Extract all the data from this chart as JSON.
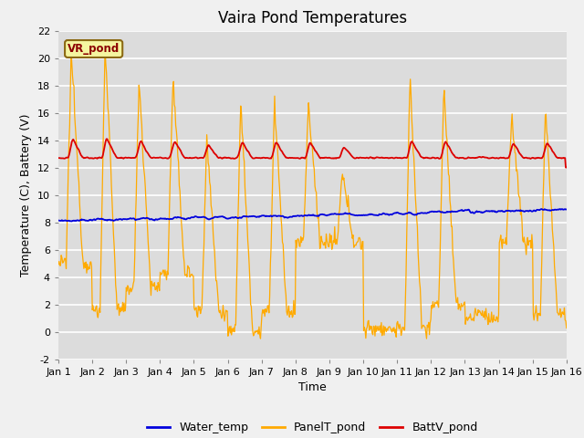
{
  "title": "Vaira Pond Temperatures",
  "xlabel": "Time",
  "ylabel": "Temperature (C), Battery (V)",
  "ylim": [
    -2,
    22
  ],
  "yticks": [
    -2,
    0,
    2,
    4,
    6,
    8,
    10,
    12,
    14,
    16,
    18,
    20,
    22
  ],
  "xtick_labels": [
    "Jan 1",
    "Jan 2",
    "Jan 3",
    "Jan 4",
    "Jan 5",
    "Jan 6",
    "Jan 7",
    "Jan 8",
    "Jan 9",
    "Jan 10",
    "Jan 11",
    "Jan 12",
    "Jan 13",
    "Jan 14",
    "Jan 15",
    "Jan 16"
  ],
  "watermark_text": "VR_pond",
  "fig_bg_color": "#f0f0f0",
  "plot_bg_color": "#dcdcdc",
  "water_temp_color": "#0000dd",
  "panel_temp_color": "#ffaa00",
  "batt_color": "#dd0000",
  "legend_labels": [
    "Water_temp",
    "PanelT_pond",
    "BattV_pond"
  ],
  "title_fontsize": 12,
  "axis_label_fontsize": 9,
  "tick_fontsize": 8,
  "days": 15,
  "pts_per_day": 48
}
